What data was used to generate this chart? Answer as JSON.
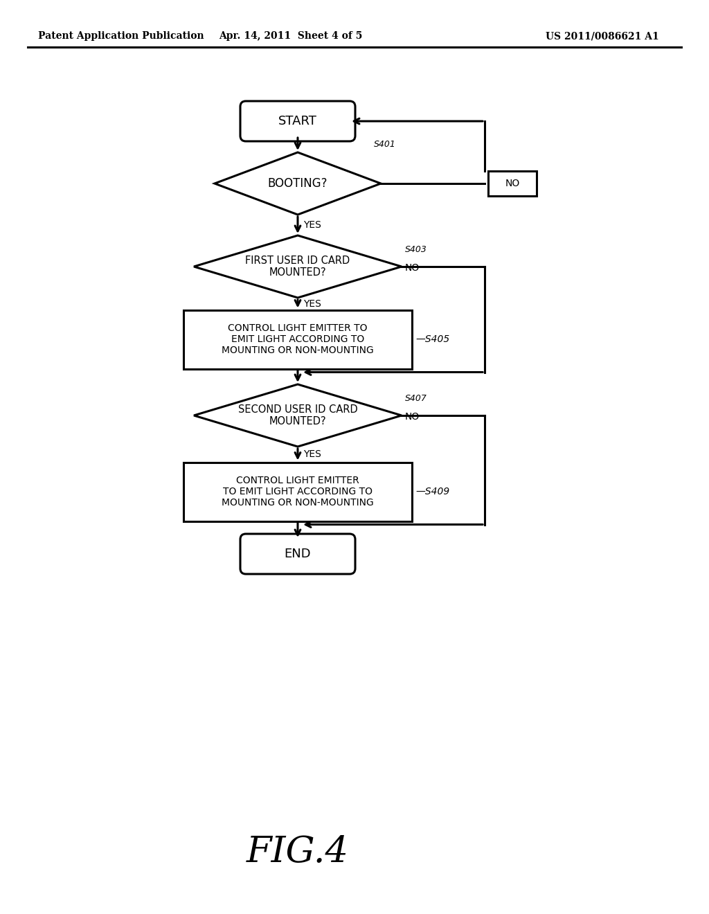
{
  "header_left": "Patent Application Publication",
  "header_center": "Apr. 14, 2011  Sheet 4 of 5",
  "header_right": "US 2011/0086621 A1",
  "figure_label": "FIG.4",
  "background_color": "#ffffff",
  "line_color": "#000000",
  "start_label": "START",
  "end_label": "END",
  "s401_label": "BOOTING?",
  "s401_step": "S401",
  "s403_label": "FIRST USER ID CARD\nMOUNTED?",
  "s403_step": "S403",
  "s405_label": "CONTROL LIGHT EMITTER TO\nEMIT LIGHT ACCORDING TO\nMOUNTING OR NON-MOUNTING",
  "s405_step": "S405",
  "s407_label": "SECOND USER ID CARD\nMOUNTED?",
  "s407_step": "S407",
  "s409_label": "CONTROL LIGHT EMITTER\nTO EMIT LIGHT ACCORDING TO\nMOUNTING OR NON-MOUNTING",
  "s409_step": "S409",
  "yes_label": "YES",
  "no_label": "NO"
}
